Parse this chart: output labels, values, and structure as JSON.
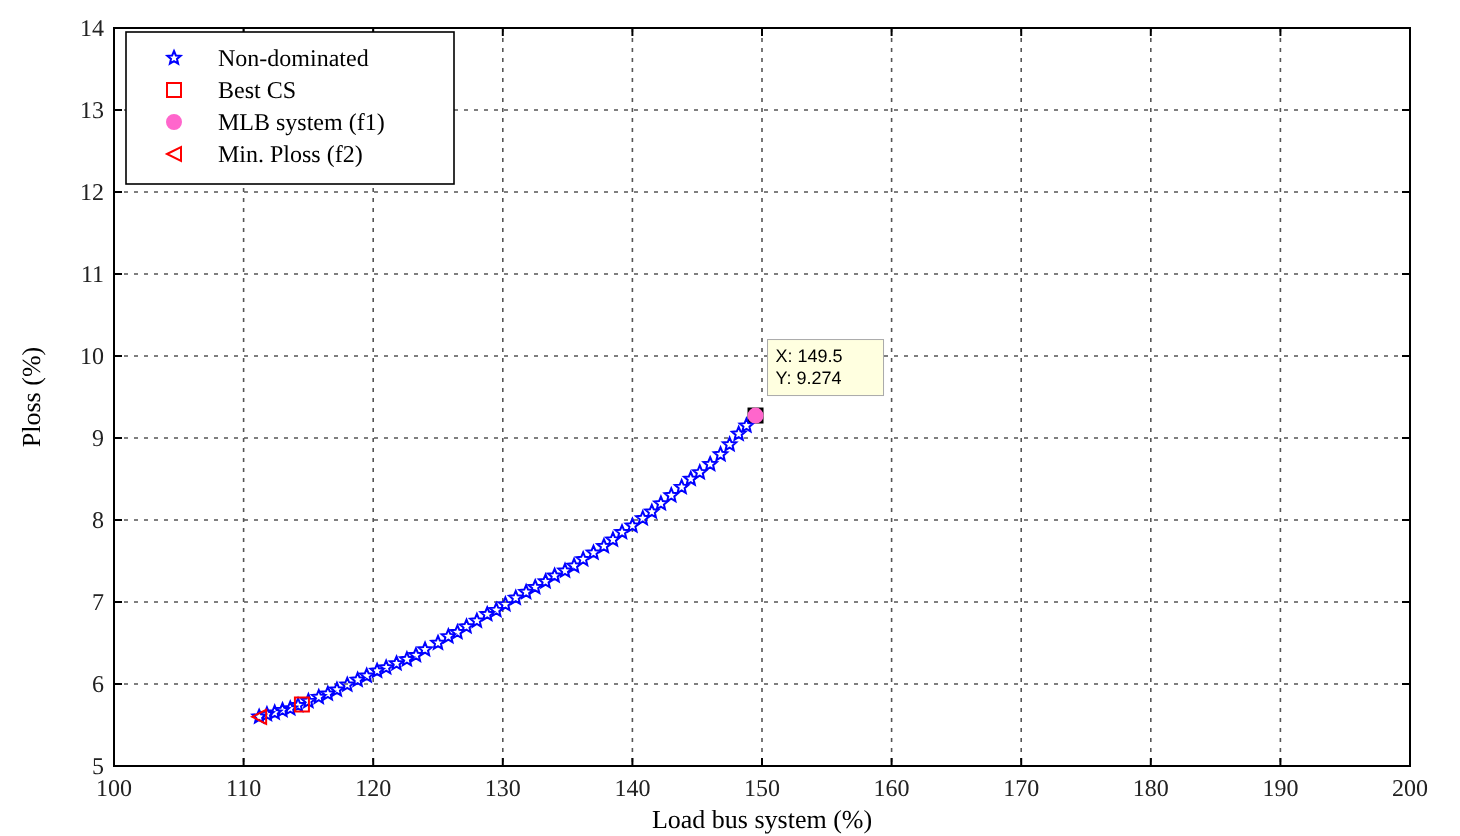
{
  "chart_data": {
    "type": "scatter",
    "xlabel": "Load bus system (%)",
    "ylabel": "Ploss (%)",
    "xlim": [
      100,
      200
    ],
    "xticks": [
      100,
      110,
      120,
      130,
      140,
      150,
      160,
      170,
      180,
      190,
      200
    ],
    "ylim": [
      5,
      14
    ],
    "yticks": [
      5,
      6,
      7,
      8,
      9,
      10,
      11,
      12,
      13,
      14
    ],
    "grid": true,
    "legend": "top left",
    "series": [
      {
        "name": "Non-dominated",
        "color": "#0000ff",
        "marker": "star",
        "x": [
          111.2,
          111.8,
          112.4,
          113.0,
          113.6,
          114.2,
          115.0,
          115.8,
          116.5,
          117.2,
          118.0,
          118.8,
          119.5,
          120.3,
          121.0,
          121.8,
          122.6,
          123.3,
          124.0,
          125.0,
          125.8,
          126.5,
          127.2,
          128.0,
          128.8,
          129.5,
          130.2,
          131.0,
          131.8,
          132.5,
          133.3,
          134.0,
          134.8,
          135.5,
          136.2,
          137.0,
          137.8,
          138.5,
          139.2,
          140.0,
          140.8,
          141.5,
          142.2,
          143.0,
          143.8,
          144.5,
          145.2,
          146.0,
          146.8,
          147.5,
          148.2,
          148.8
        ],
        "values": [
          5.6,
          5.63,
          5.65,
          5.68,
          5.7,
          5.74,
          5.79,
          5.84,
          5.88,
          5.93,
          5.99,
          6.05,
          6.1,
          6.16,
          6.2,
          6.25,
          6.3,
          6.35,
          6.42,
          6.5,
          6.58,
          6.63,
          6.7,
          6.77,
          6.85,
          6.9,
          6.97,
          7.05,
          7.12,
          7.18,
          7.25,
          7.32,
          7.38,
          7.44,
          7.52,
          7.6,
          7.68,
          7.76,
          7.85,
          7.93,
          8.02,
          8.1,
          8.2,
          8.3,
          8.4,
          8.5,
          8.58,
          8.68,
          8.8,
          8.92,
          9.05,
          9.15
        ]
      },
      {
        "name": "Best CS",
        "color": "#ff0000",
        "marker": "square",
        "x": [
          114.5
        ],
        "values": [
          5.75
        ]
      },
      {
        "name": "MLB system (f1)",
        "color": "#ff66cc",
        "marker": "circle",
        "x": [
          149.5
        ],
        "values": [
          9.274
        ]
      },
      {
        "name": "Min. Ploss (f2)",
        "color": "#ff0000",
        "marker": "triangle",
        "x": [
          111.2
        ],
        "values": [
          5.6
        ]
      }
    ],
    "annotations": [
      {
        "text": "X: 149.5\nY: 9.274",
        "x": 149.5,
        "y": 9.274
      }
    ]
  }
}
